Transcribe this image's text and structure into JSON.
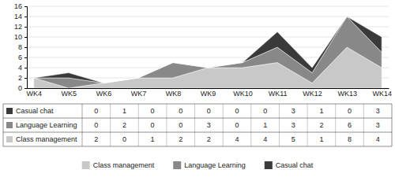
{
  "chart_data": {
    "type": "area",
    "stacked": true,
    "categories": [
      "WK4",
      "WK5",
      "WK6",
      "WK7",
      "WK8",
      "WK9",
      "WK10",
      "WK11",
      "WK12",
      "WK13",
      "WK14"
    ],
    "series": [
      {
        "name": "Class management",
        "color": "#c8c8c8",
        "values": [
          2,
          0,
          1,
          2,
          2,
          4,
          4,
          5,
          1,
          8,
          4
        ]
      },
      {
        "name": "Language Learning",
        "color": "#888888",
        "values": [
          0,
          2,
          0,
          0,
          3,
          0,
          1,
          3,
          2,
          6,
          3
        ]
      },
      {
        "name": "Casual chat",
        "color": "#3a3a3a",
        "values": [
          0,
          1,
          0,
          0,
          0,
          0,
          0,
          3,
          1,
          0,
          3
        ]
      }
    ],
    "ylim": [
      0,
      16
    ],
    "yticks": [
      0,
      2,
      4,
      6,
      8,
      10,
      12,
      14,
      16
    ],
    "grid": true,
    "legend": "bottom"
  }
}
